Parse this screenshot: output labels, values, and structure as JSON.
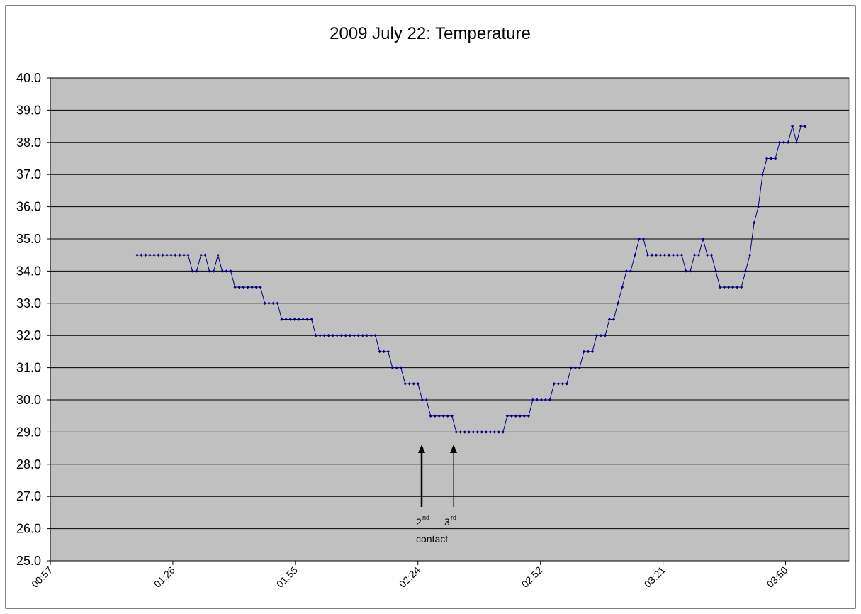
{
  "chart_data": {
    "type": "line",
    "title": "2009 July 22: Temperature",
    "x": [
      78,
      79,
      80,
      81,
      82,
      83,
      84,
      85,
      86,
      87,
      88,
      89,
      90,
      91,
      92,
      93,
      94,
      95,
      96,
      97,
      98,
      99,
      100,
      101,
      102,
      103,
      104,
      105,
      106,
      107,
      108,
      109,
      110,
      111,
      112,
      113,
      114,
      115,
      116,
      117,
      118,
      119,
      120,
      121,
      122,
      123,
      124,
      125,
      126,
      127,
      128,
      129,
      130,
      131,
      132,
      133,
      134,
      135,
      136,
      137,
      138,
      139,
      140,
      141,
      142,
      143,
      144,
      145,
      146,
      147,
      148,
      149,
      150,
      151,
      152,
      153,
      154,
      155,
      156,
      157,
      158,
      159,
      160,
      161,
      162,
      163,
      164,
      165,
      166,
      167,
      168,
      169,
      170,
      171,
      172,
      173,
      174,
      175,
      176,
      177,
      178,
      179,
      180,
      181,
      182,
      183,
      184,
      185,
      186,
      187,
      188,
      189,
      190,
      191,
      192,
      193,
      194,
      195,
      196,
      197,
      198,
      199,
      200,
      201,
      202,
      203,
      204,
      205,
      206,
      207,
      208,
      209,
      210,
      211,
      212,
      213,
      214,
      215,
      216,
      217,
      218,
      219,
      220,
      221,
      222,
      223,
      224,
      225,
      226,
      227,
      228,
      229,
      230,
      231,
      232,
      233,
      234,
      235
    ],
    "series": [
      {
        "name": "Temperature",
        "color": "#000080",
        "values": [
          34.5,
          34.5,
          34.5,
          34.5,
          34.5,
          34.5,
          34.5,
          34.5,
          34.5,
          34.5,
          34.5,
          34.5,
          34.5,
          34,
          34,
          34.5,
          34.5,
          34,
          34,
          34.5,
          34,
          34,
          34,
          33.5,
          33.5,
          33.5,
          33.5,
          33.5,
          33.5,
          33.5,
          33,
          33,
          33,
          33,
          32.5,
          32.5,
          32.5,
          32.5,
          32.5,
          32.5,
          32.5,
          32.5,
          32,
          32,
          32,
          32,
          32,
          32,
          32,
          32,
          32,
          32,
          32,
          32,
          32,
          32,
          32,
          31.5,
          31.5,
          31.5,
          31,
          31,
          31,
          30.5,
          30.5,
          30.5,
          30.5,
          30,
          30,
          29.5,
          29.5,
          29.5,
          29.5,
          29.5,
          29.5,
          29,
          29,
          29,
          29,
          29,
          29,
          29,
          29,
          29,
          29,
          29,
          29,
          29.5,
          29.5,
          29.5,
          29.5,
          29.5,
          29.5,
          30,
          30,
          30,
          30,
          30,
          30.5,
          30.5,
          30.5,
          30.5,
          31,
          31,
          31,
          31.5,
          31.5,
          31.5,
          32,
          32,
          32,
          32.5,
          32.5,
          33,
          33.5,
          34,
          34,
          34.5,
          35,
          35,
          34.5,
          34.5,
          34.5,
          34.5,
          34.5,
          34.5,
          34.5,
          34.5,
          34.5,
          34,
          34,
          34.5,
          34.5,
          35,
          34.5,
          34.5,
          34,
          33.5,
          33.5,
          33.5,
          33.5,
          33.5,
          33.5,
          34,
          34.5,
          35.5,
          36,
          37,
          37.5,
          37.5,
          37.5,
          38,
          38,
          38,
          38.5,
          38,
          38.5,
          38.5
        ]
      }
    ],
    "xlim": [
      57.6,
      245.3
    ],
    "xticks": [
      {
        "value": 57.6,
        "label": "00:57"
      },
      {
        "value": 86.4,
        "label": "01:26"
      },
      {
        "value": 115.2,
        "label": "01:55"
      },
      {
        "value": 144,
        "label": "02:24"
      },
      {
        "value": 172.8,
        "label": "02:52"
      },
      {
        "value": 201.6,
        "label": "03:21"
      },
      {
        "value": 230.4,
        "label": "03:50"
      }
    ],
    "ylim": [
      25,
      40
    ],
    "yticks": [
      {
        "value": 25,
        "label": "25.0"
      },
      {
        "value": 26,
        "label": "26.0"
      },
      {
        "value": 27,
        "label": "27.0"
      },
      {
        "value": 28,
        "label": "28.0"
      },
      {
        "value": 29,
        "label": "29.0"
      },
      {
        "value": 30,
        "label": "30.0"
      },
      {
        "value": 31,
        "label": "31.0"
      },
      {
        "value": 32,
        "label": "32.0"
      },
      {
        "value": 33,
        "label": "33.0"
      },
      {
        "value": 34,
        "label": "34.0"
      },
      {
        "value": 35,
        "label": "35.0"
      },
      {
        "value": 36,
        "label": "36.0"
      },
      {
        "value": 37,
        "label": "37.0"
      },
      {
        "value": 38,
        "label": "38.0"
      },
      {
        "value": 39,
        "label": "39.0"
      },
      {
        "value": 40,
        "label": "40.0"
      }
    ],
    "grid": true,
    "annotations": {
      "second": "2",
      "second_sup": "nd",
      "third": "3",
      "third_sup": "rd",
      "contact": "contact"
    }
  }
}
